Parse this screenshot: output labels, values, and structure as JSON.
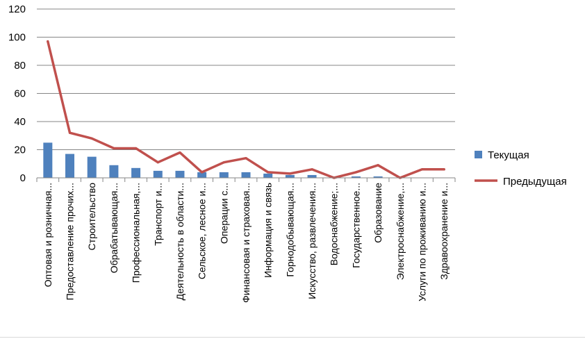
{
  "chart_data": {
    "type": "bar",
    "title": "",
    "xlabel": "",
    "ylabel": "",
    "ylim": [
      0,
      120
    ],
    "yticks": [
      0,
      20,
      40,
      60,
      80,
      100,
      120
    ],
    "grid": true,
    "legend_position": "right",
    "categories": [
      "Оптовая и розничная...",
      "Предоставление прочих...",
      "Строительство",
      "Обрабатывающая...",
      "Профессиональная,...",
      "Транспорт и...",
      "Деятельность в области...",
      "Сельское, лесное и...",
      "Операции с...",
      "Финансовая и страховая...",
      "Информация и связь",
      "Горнодобывающая...",
      "Искусство, развлечения...",
      "Водоснабжение;...",
      "Государственное...",
      "Образование",
      "Электроснабжение,...",
      "Услуги по проживанию и...",
      "Здравоохранение и..."
    ],
    "series": [
      {
        "name": "Текущая",
        "kind": "bar",
        "color": "#4f81bd",
        "values": [
          25,
          17,
          15,
          9,
          7,
          5,
          5,
          4,
          4,
          4,
          3,
          2,
          2,
          1,
          1,
          1,
          0,
          0,
          0
        ]
      },
      {
        "name": "Предыдущая",
        "kind": "line",
        "color": "#c0504d",
        "values": [
          97,
          32,
          28,
          21,
          21,
          11,
          18,
          4,
          11,
          14,
          4,
          3,
          6,
          0,
          4,
          9,
          0,
          6,
          6
        ]
      }
    ]
  }
}
